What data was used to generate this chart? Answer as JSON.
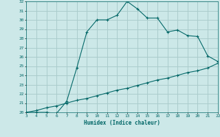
{
  "title": "",
  "xlabel": "Humidex (Indice chaleur)",
  "ylabel": "",
  "bg_color": "#cce8e8",
  "grid_color": "#aacccc",
  "line_color": "#006666",
  "xlim": [
    3,
    22
  ],
  "ylim": [
    20,
    32
  ],
  "xticks": [
    3,
    4,
    5,
    6,
    7,
    8,
    9,
    10,
    11,
    12,
    13,
    14,
    15,
    16,
    17,
    18,
    19,
    20,
    21,
    22
  ],
  "yticks": [
    20,
    21,
    22,
    23,
    24,
    25,
    26,
    27,
    28,
    29,
    30,
    31,
    32
  ],
  "curve1_x": [
    3,
    4,
    5,
    6,
    7,
    8,
    9,
    10,
    11,
    12,
    13,
    14,
    15,
    16,
    17,
    18,
    19,
    20,
    21,
    22
  ],
  "curve1_y": [
    20.0,
    20.0,
    20.0,
    19.9,
    21.2,
    24.8,
    28.7,
    30.0,
    30.0,
    30.5,
    32.0,
    31.2,
    30.2,
    30.2,
    28.7,
    28.9,
    28.3,
    28.2,
    26.1,
    25.5
  ],
  "curve2_x": [
    3,
    4,
    5,
    6,
    7,
    8,
    9,
    10,
    11,
    12,
    13,
    14,
    15,
    16,
    17,
    18,
    19,
    20,
    21,
    22
  ],
  "curve2_y": [
    20.0,
    20.2,
    20.5,
    20.7,
    21.0,
    21.3,
    21.5,
    21.8,
    22.1,
    22.4,
    22.6,
    22.9,
    23.2,
    23.5,
    23.7,
    24.0,
    24.3,
    24.5,
    24.8,
    25.3
  ]
}
